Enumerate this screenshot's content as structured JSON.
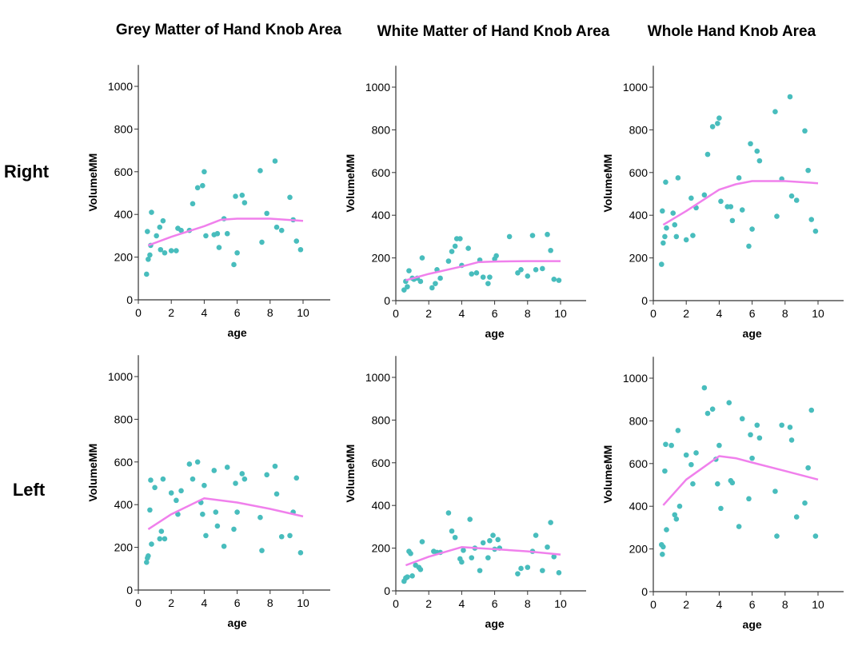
{
  "titles": {
    "col1": "Grey Matter of Hand Knob Area",
    "col2": "White Matter of Hand Knob Area",
    "col3": "Whole Hand Knob Area"
  },
  "rows": {
    "r1": "Right",
    "r2": "Left"
  },
  "colors": {
    "points": "#48BDBD",
    "fit": "#F080EC",
    "axis": "#333333"
  },
  "chart_data": [
    {
      "type": "scatter",
      "title": "Grey Matter of Hand Knob Area",
      "row": "Right",
      "xlabel": "age",
      "ylabel": "VolumeMM",
      "xlim": [
        0,
        11.7
      ],
      "ylim": [
        0,
        1100
      ],
      "xticks": [
        0,
        2,
        4,
        6,
        8,
        10
      ],
      "yticks": [
        0,
        200,
        400,
        600,
        800,
        1000
      ],
      "grid": false,
      "points": [
        [
          0.5,
          120
        ],
        [
          0.55,
          320
        ],
        [
          0.6,
          190
        ],
        [
          0.7,
          210
        ],
        [
          0.75,
          255
        ],
        [
          0.8,
          410
        ],
        [
          1.1,
          300
        ],
        [
          1.3,
          340
        ],
        [
          1.35,
          235
        ],
        [
          1.5,
          370
        ],
        [
          1.6,
          220
        ],
        [
          2.0,
          230
        ],
        [
          2.3,
          230
        ],
        [
          2.4,
          335
        ],
        [
          2.6,
          325
        ],
        [
          3.1,
          325
        ],
        [
          3.3,
          450
        ],
        [
          3.6,
          525
        ],
        [
          3.9,
          535
        ],
        [
          4.0,
          600
        ],
        [
          4.1,
          300
        ],
        [
          4.6,
          305
        ],
        [
          4.8,
          310
        ],
        [
          4.9,
          245
        ],
        [
          5.2,
          380
        ],
        [
          5.4,
          310
        ],
        [
          5.8,
          165
        ],
        [
          5.9,
          485
        ],
        [
          6.0,
          220
        ],
        [
          6.3,
          490
        ],
        [
          6.45,
          455
        ],
        [
          7.4,
          605
        ],
        [
          7.5,
          270
        ],
        [
          7.8,
          405
        ],
        [
          8.3,
          650
        ],
        [
          8.4,
          340
        ],
        [
          8.7,
          325
        ],
        [
          9.2,
          480
        ],
        [
          9.4,
          375
        ],
        [
          9.6,
          275
        ],
        [
          9.85,
          235
        ]
      ],
      "fit": [
        [
          0.6,
          255
        ],
        [
          2,
          295
        ],
        [
          4,
          345
        ],
        [
          5,
          375
        ],
        [
          6,
          380
        ],
        [
          8,
          380
        ],
        [
          10,
          370
        ]
      ]
    },
    {
      "type": "scatter",
      "title": "White Matter of Hand Knob Area",
      "row": "Right",
      "xlabel": "age",
      "ylabel": "VolumeMM",
      "xlim": [
        0,
        11.7
      ],
      "ylim": [
        0,
        1100
      ],
      "xticks": [
        0,
        2,
        4,
        6,
        8,
        10
      ],
      "yticks": [
        0,
        200,
        400,
        600,
        800,
        1000
      ],
      "grid": false,
      "points": [
        [
          0.5,
          50
        ],
        [
          0.6,
          90
        ],
        [
          0.7,
          65
        ],
        [
          0.8,
          140
        ],
        [
          1.0,
          105
        ],
        [
          1.1,
          100
        ],
        [
          1.3,
          105
        ],
        [
          1.5,
          90
        ],
        [
          1.6,
          200
        ],
        [
          2.2,
          60
        ],
        [
          2.4,
          80
        ],
        [
          2.5,
          145
        ],
        [
          2.7,
          105
        ],
        [
          3.2,
          185
        ],
        [
          3.4,
          230
        ],
        [
          3.6,
          255
        ],
        [
          3.7,
          290
        ],
        [
          3.9,
          290
        ],
        [
          4.0,
          165
        ],
        [
          4.4,
          245
        ],
        [
          4.6,
          125
        ],
        [
          4.9,
          130
        ],
        [
          5.1,
          190
        ],
        [
          5.3,
          110
        ],
        [
          5.6,
          80
        ],
        [
          5.7,
          110
        ],
        [
          6.0,
          195
        ],
        [
          6.1,
          210
        ],
        [
          6.9,
          300
        ],
        [
          7.4,
          130
        ],
        [
          7.6,
          145
        ],
        [
          8.0,
          115
        ],
        [
          8.3,
          305
        ],
        [
          8.5,
          145
        ],
        [
          8.9,
          150
        ],
        [
          9.2,
          310
        ],
        [
          9.4,
          235
        ],
        [
          9.6,
          100
        ],
        [
          9.9,
          95
        ]
      ],
      "fit": [
        [
          0.6,
          95
        ],
        [
          2,
          125
        ],
        [
          4,
          160
        ],
        [
          5,
          180
        ],
        [
          6,
          183
        ],
        [
          8,
          185
        ],
        [
          10,
          185
        ]
      ]
    },
    {
      "type": "scatter",
      "title": "Whole Hand Knob Area",
      "row": "Right",
      "xlabel": "age",
      "ylabel": "VolumeMM",
      "xlim": [
        0,
        11.7
      ],
      "ylim": [
        0,
        1100
      ],
      "xticks": [
        0,
        2,
        4,
        6,
        8,
        10
      ],
      "yticks": [
        0,
        200,
        400,
        600,
        800,
        1000
      ],
      "grid": false,
      "points": [
        [
          0.5,
          170
        ],
        [
          0.55,
          420
        ],
        [
          0.6,
          270
        ],
        [
          0.7,
          300
        ],
        [
          0.75,
          555
        ],
        [
          0.8,
          340
        ],
        [
          1.2,
          410
        ],
        [
          1.3,
          355
        ],
        [
          1.4,
          300
        ],
        [
          1.5,
          575
        ],
        [
          2.0,
          285
        ],
        [
          2.3,
          480
        ],
        [
          2.4,
          305
        ],
        [
          2.6,
          435
        ],
        [
          3.1,
          495
        ],
        [
          3.3,
          685
        ],
        [
          3.6,
          815
        ],
        [
          3.9,
          830
        ],
        [
          4.0,
          855
        ],
        [
          4.1,
          465
        ],
        [
          4.5,
          440
        ],
        [
          4.7,
          440
        ],
        [
          4.8,
          375
        ],
        [
          5.2,
          575
        ],
        [
          5.4,
          425
        ],
        [
          5.8,
          255
        ],
        [
          5.9,
          735
        ],
        [
          6.0,
          335
        ],
        [
          6.3,
          700
        ],
        [
          6.45,
          655
        ],
        [
          7.4,
          885
        ],
        [
          7.5,
          395
        ],
        [
          7.8,
          570
        ],
        [
          8.3,
          955
        ],
        [
          8.4,
          490
        ],
        [
          8.7,
          470
        ],
        [
          9.2,
          795
        ],
        [
          9.4,
          610
        ],
        [
          9.6,
          380
        ],
        [
          9.85,
          325
        ]
      ],
      "fit": [
        [
          0.6,
          355
        ],
        [
          2,
          420
        ],
        [
          4,
          520
        ],
        [
          5,
          545
        ],
        [
          6,
          560
        ],
        [
          8,
          560
        ],
        [
          10,
          550
        ]
      ]
    },
    {
      "type": "scatter",
      "title": "Grey Matter of Hand Knob Area",
      "row": "Left",
      "xlabel": "age",
      "ylabel": "VolumeMM",
      "xlim": [
        0,
        11.7
      ],
      "ylim": [
        0,
        1100
      ],
      "xticks": [
        0,
        2,
        4,
        6,
        8,
        10
      ],
      "yticks": [
        0,
        200,
        400,
        600,
        800,
        1000
      ],
      "grid": false,
      "points": [
        [
          0.5,
          130
        ],
        [
          0.55,
          150
        ],
        [
          0.6,
          160
        ],
        [
          0.7,
          375
        ],
        [
          0.75,
          515
        ],
        [
          0.8,
          215
        ],
        [
          1.0,
          480
        ],
        [
          1.3,
          240
        ],
        [
          1.4,
          275
        ],
        [
          1.5,
          520
        ],
        [
          1.6,
          240
        ],
        [
          2.0,
          455
        ],
        [
          2.3,
          420
        ],
        [
          2.4,
          355
        ],
        [
          2.6,
          465
        ],
        [
          3.1,
          590
        ],
        [
          3.3,
          520
        ],
        [
          3.6,
          600
        ],
        [
          3.8,
          410
        ],
        [
          3.9,
          355
        ],
        [
          4.0,
          490
        ],
        [
          4.1,
          255
        ],
        [
          4.6,
          560
        ],
        [
          4.7,
          365
        ],
        [
          4.8,
          300
        ],
        [
          5.2,
          205
        ],
        [
          5.4,
          575
        ],
        [
          5.8,
          285
        ],
        [
          5.9,
          500
        ],
        [
          6.0,
          365
        ],
        [
          6.3,
          545
        ],
        [
          6.45,
          520
        ],
        [
          7.4,
          340
        ],
        [
          7.5,
          185
        ],
        [
          7.8,
          540
        ],
        [
          8.3,
          580
        ],
        [
          8.4,
          450
        ],
        [
          8.7,
          250
        ],
        [
          9.2,
          255
        ],
        [
          9.4,
          365
        ],
        [
          9.6,
          525
        ],
        [
          9.85,
          175
        ]
      ],
      "fit": [
        [
          0.6,
          285
        ],
        [
          2,
          355
        ],
        [
          4,
          430
        ],
        [
          5,
          420
        ],
        [
          6,
          410
        ],
        [
          8,
          380
        ],
        [
          10,
          345
        ]
      ]
    },
    {
      "type": "scatter",
      "title": "White Matter of Hand Knob Area",
      "row": "Left",
      "xlabel": "age",
      "ylabel": "VolumeMM",
      "xlim": [
        0,
        11.7
      ],
      "ylim": [
        0,
        1100
      ],
      "xticks": [
        0,
        2,
        4,
        6,
        8,
        10
      ],
      "yticks": [
        0,
        200,
        400,
        600,
        800,
        1000
      ],
      "grid": false,
      "points": [
        [
          0.5,
          45
        ],
        [
          0.6,
          60
        ],
        [
          0.7,
          65
        ],
        [
          0.8,
          185
        ],
        [
          0.9,
          175
        ],
        [
          1.0,
          70
        ],
        [
          1.2,
          120
        ],
        [
          1.4,
          110
        ],
        [
          1.5,
          100
        ],
        [
          1.6,
          230
        ],
        [
          2.3,
          185
        ],
        [
          2.5,
          180
        ],
        [
          2.7,
          180
        ],
        [
          3.2,
          365
        ],
        [
          3.4,
          280
        ],
        [
          3.6,
          250
        ],
        [
          3.9,
          150
        ],
        [
          4.0,
          135
        ],
        [
          4.1,
          190
        ],
        [
          4.5,
          335
        ],
        [
          4.6,
          155
        ],
        [
          4.8,
          200
        ],
        [
          5.1,
          95
        ],
        [
          5.3,
          225
        ],
        [
          5.6,
          155
        ],
        [
          5.7,
          235
        ],
        [
          5.9,
          260
        ],
        [
          6.0,
          195
        ],
        [
          6.2,
          240
        ],
        [
          6.3,
          200
        ],
        [
          7.4,
          80
        ],
        [
          7.6,
          105
        ],
        [
          8.0,
          110
        ],
        [
          8.3,
          185
        ],
        [
          8.5,
          260
        ],
        [
          8.9,
          95
        ],
        [
          9.2,
          205
        ],
        [
          9.4,
          320
        ],
        [
          9.6,
          160
        ],
        [
          9.9,
          85
        ]
      ],
      "fit": [
        [
          0.6,
          120
        ],
        [
          2,
          160
        ],
        [
          4,
          205
        ],
        [
          5,
          200
        ],
        [
          6,
          195
        ],
        [
          8,
          185
        ],
        [
          10,
          170
        ]
      ]
    },
    {
      "type": "scatter",
      "title": "Whole Hand Knob Area",
      "row": "Left",
      "xlabel": "age",
      "ylabel": "VolumeMM",
      "xlim": [
        0,
        11.7
      ],
      "ylim": [
        0,
        1100
      ],
      "xticks": [
        0,
        2,
        4,
        6,
        8,
        10
      ],
      "yticks": [
        0,
        200,
        400,
        600,
        800,
        1000
      ],
      "grid": false,
      "points": [
        [
          0.5,
          220
        ],
        [
          0.55,
          175
        ],
        [
          0.6,
          210
        ],
        [
          0.7,
          565
        ],
        [
          0.75,
          690
        ],
        [
          0.8,
          290
        ],
        [
          1.1,
          685
        ],
        [
          1.3,
          360
        ],
        [
          1.4,
          340
        ],
        [
          1.5,
          755
        ],
        [
          1.6,
          400
        ],
        [
          2.0,
          640
        ],
        [
          2.3,
          595
        ],
        [
          2.4,
          505
        ],
        [
          2.6,
          650
        ],
        [
          3.1,
          955
        ],
        [
          3.3,
          835
        ],
        [
          3.6,
          855
        ],
        [
          3.8,
          620
        ],
        [
          3.9,
          505
        ],
        [
          4.0,
          685
        ],
        [
          4.1,
          390
        ],
        [
          4.6,
          885
        ],
        [
          4.7,
          520
        ],
        [
          4.8,
          510
        ],
        [
          5.2,
          305
        ],
        [
          5.4,
          810
        ],
        [
          5.8,
          435
        ],
        [
          5.9,
          735
        ],
        [
          6.0,
          625
        ],
        [
          6.3,
          780
        ],
        [
          6.45,
          720
        ],
        [
          7.4,
          470
        ],
        [
          7.5,
          260
        ],
        [
          7.8,
          780
        ],
        [
          8.3,
          770
        ],
        [
          8.4,
          710
        ],
        [
          8.7,
          350
        ],
        [
          9.2,
          415
        ],
        [
          9.4,
          580
        ],
        [
          9.6,
          850
        ],
        [
          9.85,
          260
        ]
      ],
      "fit": [
        [
          0.6,
          405
        ],
        [
          2,
          525
        ],
        [
          4,
          635
        ],
        [
          5,
          625
        ],
        [
          6,
          605
        ],
        [
          8,
          565
        ],
        [
          10,
          525
        ]
      ]
    }
  ]
}
